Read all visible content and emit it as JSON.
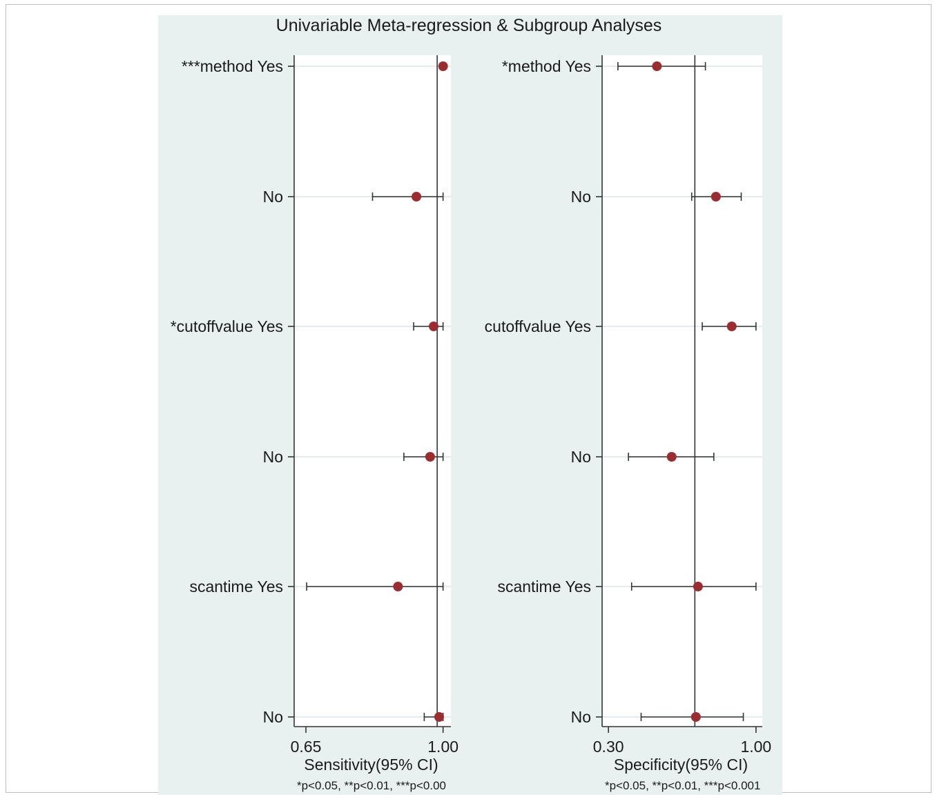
{
  "figure": {
    "title": "Univariable Meta-regression & Subgroup Analyses",
    "colors": {
      "outer_background": "#e8f0f0",
      "plot_background": "#ffffff",
      "marker": "#9b2c2f",
      "gridline": "#e3ecec",
      "axis": "#333333"
    }
  },
  "chart_data": [
    {
      "type": "forest",
      "title": "",
      "xlabel": "Sensitivity(95% CI)",
      "footnote": "*p<0.05, **p<0.01, ***p<0.00",
      "xlim": [
        0.62,
        1.02
      ],
      "xticks": [
        "0.65",
        "1.00"
      ],
      "xtick_values": [
        0.65,
        1.0
      ],
      "reference_line": 0.985,
      "grid": true,
      "rows": [
        {
          "label": "***method Yes",
          "estimate": 1.0,
          "ci_low": 1.0,
          "ci_high": 1.0
        },
        {
          "label": "No",
          "estimate": 0.932,
          "ci_low": 0.82,
          "ci_high": 1.0
        },
        {
          "label": "*cutoffvalue Yes",
          "estimate": 0.976,
          "ci_low": 0.925,
          "ci_high": 1.0
        },
        {
          "label": "No",
          "estimate": 0.967,
          "ci_low": 0.9,
          "ci_high": 1.0
        },
        {
          "label": "scantime Yes",
          "estimate": 0.885,
          "ci_low": 0.652,
          "ci_high": 1.0
        },
        {
          "label": "No",
          "estimate": 0.99,
          "ci_low": 0.952,
          "ci_high": 1.0
        }
      ]
    },
    {
      "type": "forest",
      "title": "",
      "xlabel": "Specificity(95% CI)",
      "footnote": "*p<0.05, **p<0.01, ***p<0.001",
      "xlim": [
        0.27,
        1.03
      ],
      "xticks": [
        "0.30",
        "1.00"
      ],
      "xtick_values": [
        0.3,
        1.0
      ],
      "reference_line": 0.71,
      "grid": true,
      "rows": [
        {
          "label": "*method Yes",
          "estimate": 0.53,
          "ci_low": 0.345,
          "ci_high": 0.76
        },
        {
          "label": "No",
          "estimate": 0.81,
          "ci_low": 0.695,
          "ci_high": 0.93
        },
        {
          "label": "cutoffvalue Yes",
          "estimate": 0.885,
          "ci_low": 0.745,
          "ci_high": 1.0
        },
        {
          "label": "No",
          "estimate": 0.6,
          "ci_low": 0.395,
          "ci_high": 0.8
        },
        {
          "label": "scantime Yes",
          "estimate": 0.725,
          "ci_low": 0.41,
          "ci_high": 1.0
        },
        {
          "label": "No",
          "estimate": 0.715,
          "ci_low": 0.455,
          "ci_high": 0.94
        }
      ]
    }
  ]
}
